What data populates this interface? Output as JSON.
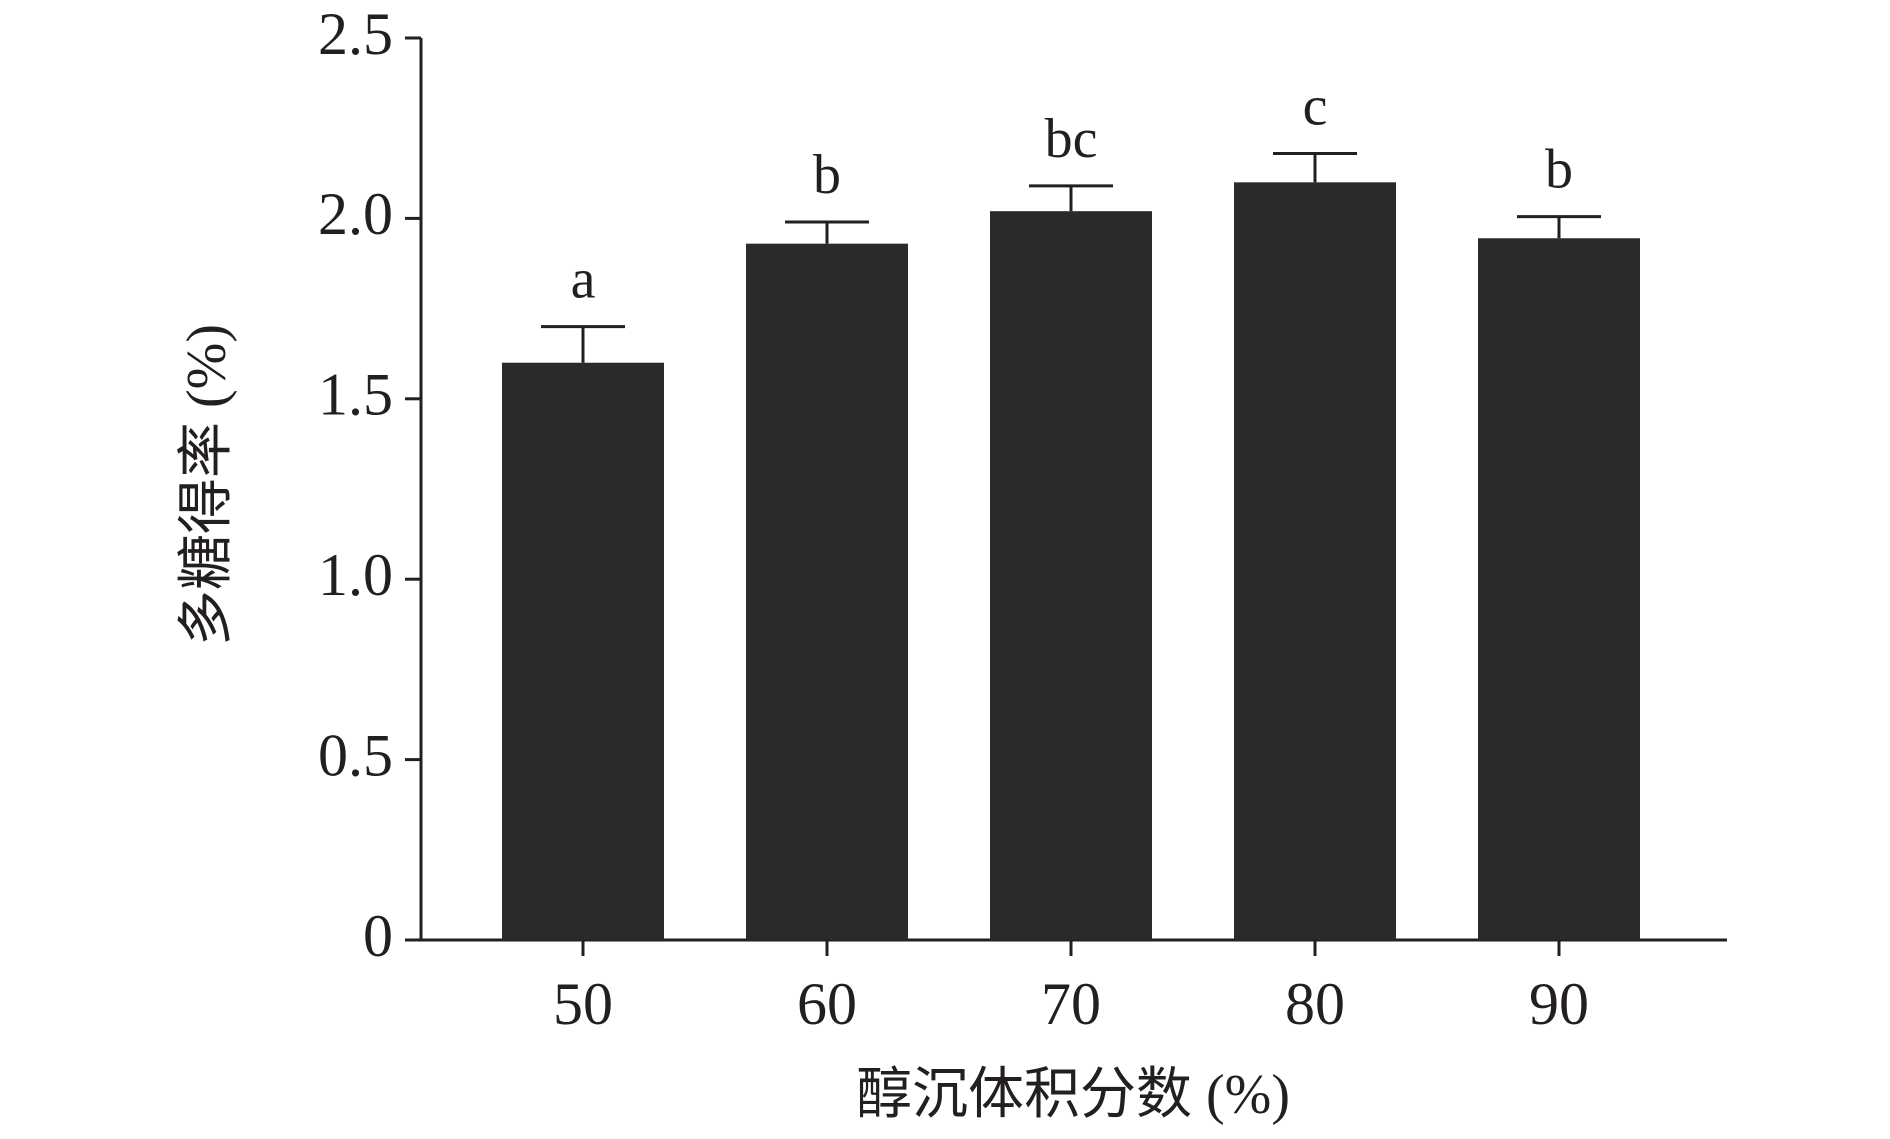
{
  "chart_data": {
    "type": "bar",
    "x_label": "醇沉体积分数 (%)",
    "y_label": "多糖得率 (%)",
    "categories": [
      "50",
      "60",
      "70",
      "80",
      "90"
    ],
    "values": [
      1.6,
      1.93,
      2.02,
      2.1,
      1.945
    ],
    "errors": [
      0.1,
      0.06,
      0.07,
      0.08,
      0.06
    ],
    "significance_labels": [
      "a",
      "b",
      "bc",
      "c",
      "b"
    ],
    "color": "#2b2a2b",
    "ylim": [
      0,
      2.5
    ],
    "yticks": [
      0,
      0.5,
      {
        "value": 1,
        "label": "1.0"
      },
      1.5,
      {
        "value": 2,
        "label": "2.0"
      },
      2.5
    ]
  }
}
